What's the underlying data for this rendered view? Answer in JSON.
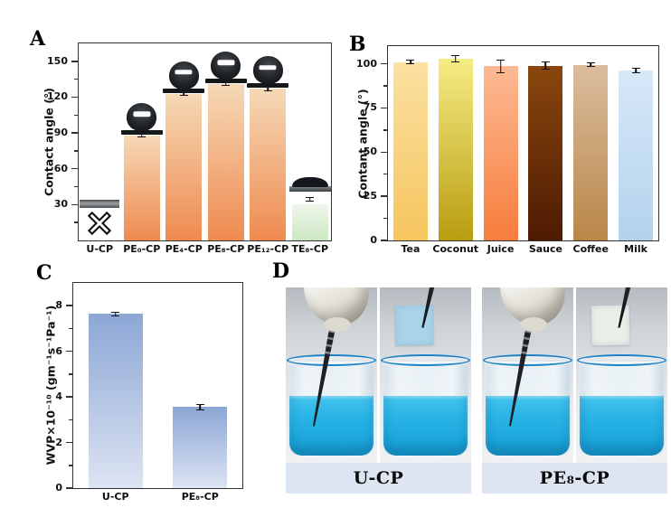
{
  "panels": {
    "a": "A",
    "b": "B",
    "c": "C",
    "d": "D"
  },
  "chart_data": [
    {
      "id": "A",
      "type": "bar",
      "title": "",
      "xlabel": "",
      "ylabel": "Contact angle (°)",
      "ylim": [
        0,
        165
      ],
      "yticks": [
        30,
        60,
        90,
        120,
        150
      ],
      "minor_tick_step": 15,
      "grid": false,
      "legend": false,
      "categories": [
        "U-CP",
        "PE₀-CP",
        "PE₄-CP",
        "PE₈-CP",
        "PE₁₂-CP",
        "TE₈-CP"
      ],
      "values": [
        32,
        88,
        123,
        131,
        127,
        30
      ],
      "errors": [
        0,
        1.5,
        1.5,
        1.5,
        1.5,
        2
      ],
      "bar_color_top": [
        "#9aa0a3",
        "#f5d9b6",
        "#f5d9b6",
        "#f5d9b6",
        "#f5d9b6",
        "#f0f7ec"
      ],
      "bar_color_bottom": [
        "#55595c",
        "#ef8a50",
        "#ef8a50",
        "#ef8a50",
        "#ef8a50",
        "#cbe7c1"
      ],
      "markers": [
        "cross-no-bar",
        "droplet-round",
        "droplet-round",
        "droplet-round",
        "droplet-round",
        "droplet-flat"
      ]
    },
    {
      "id": "B",
      "type": "bar",
      "title": "",
      "xlabel": "",
      "ylabel": "Contant angle (°)",
      "ylim": [
        0,
        110
      ],
      "yticks": [
        0,
        25,
        50,
        75,
        100
      ],
      "minor_tick_step": 12.5,
      "grid": false,
      "legend": false,
      "categories": [
        "Tea",
        "Coconut",
        "Juice",
        "Sauce",
        "Coffee",
        "Milk"
      ],
      "values": [
        101,
        103,
        98.5,
        99,
        99.5,
        96
      ],
      "errors": [
        0.5,
        2,
        4,
        2.5,
        1,
        1.5
      ],
      "bar_color_top": [
        "#fbe1a2",
        "#f6ec85",
        "#fcba94",
        "#8a470e",
        "#dabd9e",
        "#d7e8f8"
      ],
      "bar_color_bottom": [
        "#f6c55e",
        "#b89d10",
        "#f87d3c",
        "#4e1a02",
        "#b98648",
        "#b3d2ec"
      ],
      "markers": [
        null,
        null,
        null,
        null,
        null,
        null
      ]
    },
    {
      "id": "C",
      "type": "bar",
      "title": "",
      "xlabel": "",
      "ylabel": "WVP×10⁻¹⁰ (gm⁻¹s⁻¹Pa⁻¹)",
      "ylim": [
        0,
        9
      ],
      "yticks": [
        0,
        2,
        4,
        6,
        8
      ],
      "minor_tick_step": 1,
      "grid": false,
      "legend": false,
      "categories": [
        "U-CP",
        "PE₈-CP"
      ],
      "values": [
        7.65,
        3.55
      ],
      "errors": [
        0.1,
        0.15
      ],
      "bar_color_top": [
        "#8ca6d5",
        "#8ca6d5"
      ],
      "bar_color_bottom": [
        "#dde4f3",
        "#dde4f3"
      ],
      "markers": [
        null,
        null
      ]
    }
  ],
  "photo_panel": {
    "groups": [
      {
        "caption": "U-CP",
        "paper_color": "#a9d3e8"
      },
      {
        "caption": "PE₈-CP",
        "paper_color": "#e9efe8"
      }
    ]
  },
  "colors": {
    "axis": "#333333",
    "error_bar": "#111111",
    "liquid_blue": "#29b4e6",
    "caption_band": "#dce5f1"
  }
}
